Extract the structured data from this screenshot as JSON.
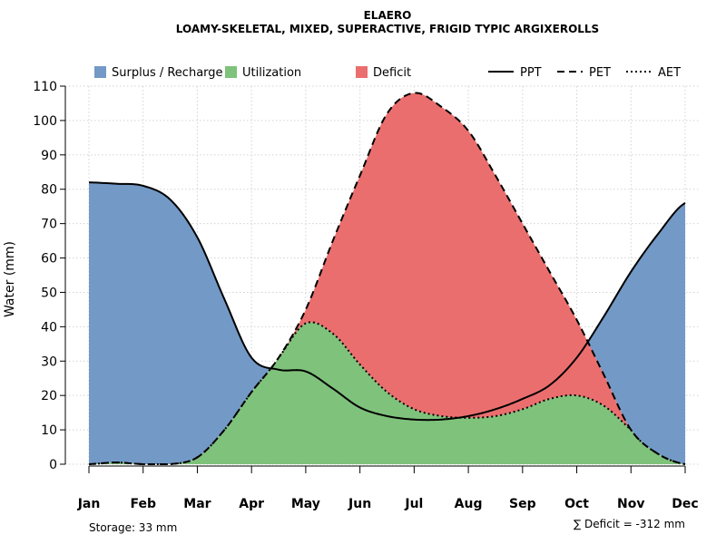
{
  "chart_data": {
    "type": "area",
    "title": "ELAERO",
    "subtitle": "LOAMY-SKELETAL, MIXED, SUPERACTIVE, FRIGID TYPIC ARGIXEROLLS",
    "xlabel": "",
    "ylabel": "Water (mm)",
    "ylim": [
      0,
      110
    ],
    "yticks": [
      0,
      10,
      20,
      30,
      40,
      50,
      60,
      70,
      80,
      90,
      100,
      110
    ],
    "grid": true,
    "legend_position": "top",
    "categories": [
      "Jan",
      "Feb",
      "Mar",
      "Apr",
      "May",
      "Jun",
      "Jul",
      "Aug",
      "Sep",
      "Oct",
      "Nov",
      "Dec"
    ],
    "x": [
      1,
      1.5,
      2,
      2.5,
      3,
      3.5,
      4,
      4.5,
      5,
      5.5,
      6,
      6.5,
      7,
      7.5,
      8,
      8.5,
      9,
      9.5,
      10,
      10.5,
      11,
      11.5,
      12
    ],
    "series": [
      {
        "name": "PPT",
        "style": "solid",
        "values": [
          82,
          81.6,
          81,
          77,
          66,
          48,
          31,
          27.5,
          27,
          22,
          16.5,
          14,
          13,
          13,
          14,
          16,
          19,
          23,
          31,
          43,
          56,
          67,
          76
        ]
      },
      {
        "name": "PET",
        "style": "dashed",
        "values": [
          0,
          0.5,
          0,
          0,
          2,
          10,
          21,
          31,
          45,
          65,
          84,
          102,
          108,
          104,
          97,
          84,
          70,
          56,
          42,
          26,
          10,
          3,
          0
        ]
      },
      {
        "name": "AET",
        "style": "dotted",
        "values": [
          0,
          0.5,
          0,
          0,
          2,
          10,
          21,
          31,
          41,
          38,
          29,
          21,
          16,
          14,
          13.5,
          14,
          16,
          19,
          20,
          17,
          10,
          3,
          0
        ]
      }
    ],
    "legend": [
      {
        "label": "Surplus / Recharge",
        "kind": "fill",
        "color": "#7399c6"
      },
      {
        "label": "Utilization",
        "kind": "fill",
        "color": "#7fc27b"
      },
      {
        "label": "Deficit",
        "kind": "fill",
        "color": "#eb6e6e"
      },
      {
        "label": "PPT",
        "kind": "line",
        "style": "solid"
      },
      {
        "label": "PET",
        "kind": "line",
        "style": "dashed"
      },
      {
        "label": "AET",
        "kind": "line",
        "style": "dotted"
      }
    ],
    "colors": {
      "surplus": "#7399c6",
      "utilization": "#7fc27b",
      "deficit": "#eb6e6e",
      "grid": "#d3d3d3"
    }
  },
  "annotations": {
    "storage": "Storage: 33 mm",
    "deficit_sum": "∑ Deficit = -312 mm"
  }
}
